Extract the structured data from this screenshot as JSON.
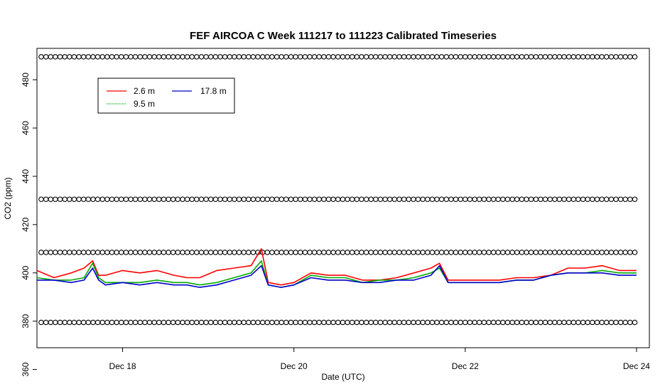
{
  "chart_data": {
    "type": "line",
    "title": "FEF AIRCOA C  Week 111217 to 111223  Calibrated Timeseries",
    "xlabel": "Date (UTC)",
    "ylabel": "CO2 (ppm)",
    "xlim": [
      17.0,
      24.15
    ],
    "ylim": [
      369,
      493
    ],
    "x_ticks": [
      {
        "label": "Dec 18",
        "value": 18
      },
      {
        "label": "Dec 20",
        "value": 20
      },
      {
        "label": "Dec 22",
        "value": 22
      },
      {
        "label": "Dec 24",
        "value": 24
      }
    ],
    "y_ticks": [
      360,
      380,
      400,
      420,
      440,
      460,
      480
    ],
    "legend": {
      "placement": "top-left",
      "entries": [
        {
          "label": "2.6 m",
          "color": "#ff0000"
        },
        {
          "label": "9.5 m",
          "color": "#00aa00"
        },
        {
          "label": "17.8 m",
          "color": "#0000cc"
        }
      ]
    },
    "series": [
      {
        "name": "2.6 m",
        "color": "#ff0000",
        "x": [
          17.0,
          17.2,
          17.4,
          17.55,
          17.65,
          17.72,
          17.8,
          18.0,
          18.2,
          18.4,
          18.6,
          18.75,
          18.9,
          19.1,
          19.3,
          19.5,
          19.62,
          19.7,
          19.85,
          20.0,
          20.2,
          20.4,
          20.6,
          20.8,
          21.0,
          21.2,
          21.4,
          21.6,
          21.7,
          21.8,
          22.0,
          22.2,
          22.4,
          22.6,
          22.8,
          23.0,
          23.2,
          23.4,
          23.6,
          23.8,
          24.0
        ],
        "y": [
          401,
          398,
          400,
          402,
          405,
          399,
          399,
          401,
          400,
          401,
          399,
          398,
          398,
          401,
          402,
          403,
          410,
          396,
          395,
          396,
          400,
          399,
          399,
          397,
          397,
          398,
          400,
          402,
          404,
          397,
          397,
          397,
          397,
          398,
          398,
          399,
          402,
          402,
          403,
          401,
          401
        ]
      },
      {
        "name": "9.5 m",
        "color": "#00aa00",
        "x": [
          17.0,
          17.2,
          17.4,
          17.55,
          17.65,
          17.72,
          17.8,
          18.0,
          18.2,
          18.4,
          18.6,
          18.75,
          18.9,
          19.1,
          19.3,
          19.5,
          19.62,
          19.7,
          19.85,
          20.0,
          20.2,
          20.4,
          20.6,
          20.8,
          21.0,
          21.2,
          21.4,
          21.6,
          21.7,
          21.8,
          22.0,
          22.2,
          22.4,
          22.6,
          22.8,
          23.0,
          23.2,
          23.4,
          23.6,
          23.8,
          24.0
        ],
        "y": [
          398,
          397,
          397,
          398,
          404,
          398,
          396,
          396,
          396,
          397,
          396,
          396,
          395,
          396,
          398,
          400,
          405,
          395,
          394,
          395,
          399,
          398,
          398,
          396,
          397,
          397,
          398,
          400,
          402,
          396,
          396,
          396,
          396,
          397,
          397,
          399,
          400,
          400,
          401,
          400,
          400
        ]
      },
      {
        "name": "17.8 m",
        "color": "#0000cc",
        "x": [
          17.0,
          17.2,
          17.4,
          17.55,
          17.65,
          17.72,
          17.8,
          18.0,
          18.2,
          18.4,
          18.6,
          18.75,
          18.9,
          19.1,
          19.3,
          19.5,
          19.62,
          19.7,
          19.85,
          20.0,
          20.2,
          20.4,
          20.6,
          20.8,
          21.0,
          21.2,
          21.4,
          21.6,
          21.7,
          21.8,
          22.0,
          22.2,
          22.4,
          22.6,
          22.8,
          23.0,
          23.2,
          23.4,
          23.6,
          23.8,
          24.0
        ],
        "y": [
          397,
          397,
          396,
          397,
          402,
          397,
          395,
          396,
          395,
          396,
          395,
          395,
          394,
          395,
          397,
          399,
          403,
          395,
          394,
          395,
          398,
          397,
          397,
          396,
          396,
          397,
          397,
          399,
          403,
          396,
          396,
          396,
          396,
          397,
          397,
          399,
          400,
          400,
          400,
          399,
          399
        ]
      }
    ],
    "marker_rows": [
      {
        "y": 489.5,
        "x_start": 17.05,
        "x_end": 24.0,
        "step": 0.055
      },
      {
        "y": 430.5,
        "x_start": 17.05,
        "x_end": 24.0,
        "step": 0.055
      },
      {
        "y": 408.5,
        "x_start": 17.05,
        "x_end": 24.0,
        "step": 0.055
      },
      {
        "y": 379.5,
        "x_start": 17.05,
        "x_end": 24.0,
        "step": 0.055
      }
    ]
  }
}
